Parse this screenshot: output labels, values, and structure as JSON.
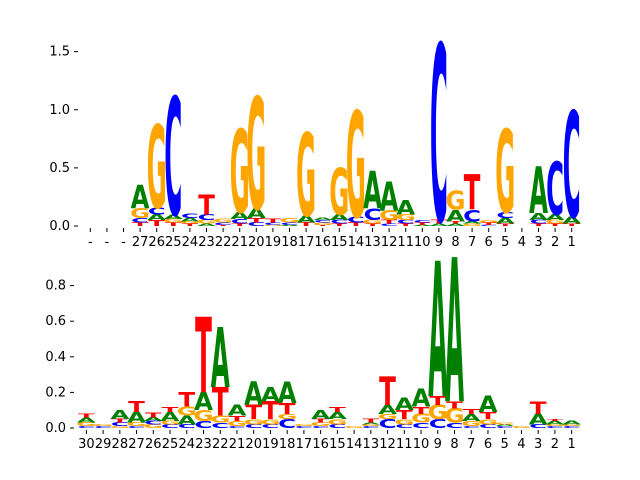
{
  "colors": {
    "A": "#008000",
    "C": "#0000ff",
    "G": "#ffa500",
    "T": "#ff0000"
  },
  "chart_data": [
    {
      "type": "sequence-logo",
      "title": "",
      "xlabel": "",
      "ylabel": "",
      "ylim": [
        0,
        1.6
      ],
      "yticks": [
        "0.0",
        "0.5",
        "1.0",
        "1.5"
      ],
      "ytick_values": [
        0,
        0.5,
        1.0,
        1.5
      ],
      "grid": false,
      "xticks": [
        "-",
        "-",
        "-",
        "27",
        "26",
        "25",
        "24",
        "23",
        "22",
        "21",
        "20",
        "19",
        "18",
        "17",
        "16",
        "15",
        "14",
        "13",
        "12",
        "11",
        "10",
        "9",
        "8",
        "7",
        "6",
        "5",
        "4",
        "3",
        "2",
        "1"
      ],
      "positions": [
        [],
        [],
        [],
        [
          [
            "T",
            0.03
          ],
          [
            "C",
            0.04
          ],
          [
            "G",
            0.08
          ],
          [
            "A",
            0.2
          ]
        ],
        [
          [
            "T",
            0.05
          ],
          [
            "A",
            0.05
          ],
          [
            "C",
            0.06
          ],
          [
            "G",
            0.7
          ]
        ],
        [
          [
            "T",
            0.03
          ],
          [
            "G",
            0.03
          ],
          [
            "A",
            0.04
          ],
          [
            "C",
            1.0
          ]
        ],
        [
          [
            "T",
            0.02
          ],
          [
            "G",
            0.02
          ],
          [
            "A",
            0.03
          ],
          [
            "C",
            0.04
          ]
        ],
        [
          [
            "A",
            0.02
          ],
          [
            "G",
            0.03
          ],
          [
            "C",
            0.05
          ],
          [
            "T",
            0.17
          ]
        ],
        [
          [
            "T",
            0.01
          ],
          [
            "C",
            0.02
          ],
          [
            "G",
            0.03
          ]
        ],
        [
          [
            "T",
            0.02
          ],
          [
            "C",
            0.04
          ],
          [
            "A",
            0.06
          ],
          [
            "G",
            0.7
          ]
        ],
        [
          [
            "C",
            0.03
          ],
          [
            "T",
            0.04
          ],
          [
            "A",
            0.08
          ],
          [
            "G",
            0.95
          ]
        ],
        [
          [
            "G",
            0.01
          ],
          [
            "C",
            0.02
          ],
          [
            "T",
            0.03
          ]
        ],
        [
          [
            "A",
            0.01
          ],
          [
            "C",
            0.02
          ],
          [
            "G",
            0.04
          ]
        ],
        [
          [
            "T",
            0.03
          ],
          [
            "A",
            0.06
          ],
          [
            "G",
            0.7
          ]
        ],
        [
          [
            "T",
            0.01
          ],
          [
            "G",
            0.02
          ],
          [
            "C",
            0.02
          ],
          [
            "A",
            0.02
          ]
        ],
        [
          [
            "T",
            0.02
          ],
          [
            "C",
            0.03
          ],
          [
            "A",
            0.05
          ],
          [
            "G",
            0.4
          ]
        ],
        [
          [
            "T",
            0.03
          ],
          [
            "C",
            0.05
          ],
          [
            "G",
            0.9
          ]
        ],
        [
          [
            "T",
            0.02
          ],
          [
            "G",
            0.03
          ],
          [
            "C",
            0.1
          ],
          [
            "A",
            0.32
          ]
        ],
        [
          [
            "C",
            0.02
          ],
          [
            "T",
            0.03
          ],
          [
            "G",
            0.08
          ],
          [
            "A",
            0.25
          ]
        ],
        [
          [
            "T",
            0.02
          ],
          [
            "C",
            0.03
          ],
          [
            "G",
            0.05
          ],
          [
            "A",
            0.12
          ]
        ],
        [
          [
            "A",
            0.01
          ],
          [
            "T",
            0.02
          ],
          [
            "C",
            0.02
          ]
        ],
        [
          [
            "A",
            0.02
          ],
          [
            "T",
            0.03
          ],
          [
            "C",
            1.5
          ]
        ],
        [
          [
            "A",
            0.02
          ],
          [
            "T",
            0.02
          ],
          [
            "A",
            0.1
          ],
          [
            "G",
            0.16
          ]
        ],
        [
          [
            "G",
            0.02
          ],
          [
            "A",
            0.02
          ],
          [
            "C",
            0.1
          ],
          [
            "T",
            0.3
          ]
        ],
        [
          [
            "C",
            0.01
          ],
          [
            "T",
            0.02
          ],
          [
            "G",
            0.02
          ]
        ],
        [
          [
            "T",
            0.02
          ],
          [
            "A",
            0.05
          ],
          [
            "C",
            0.05
          ],
          [
            "G",
            0.7
          ]
        ],
        [],
        [
          [
            "T",
            0.02
          ],
          [
            "C",
            0.03
          ],
          [
            "A",
            0.06
          ],
          [
            "A",
            0.4
          ]
        ],
        [
          [
            "T",
            0.02
          ],
          [
            "G",
            0.03
          ],
          [
            "A",
            0.05
          ],
          [
            "C",
            0.45
          ]
        ],
        [
          [
            "T",
            0.02
          ],
          [
            "A",
            0.06
          ],
          [
            "C",
            0.9
          ]
        ]
      ]
    },
    {
      "type": "sequence-logo",
      "title": "",
      "xlabel": "",
      "ylabel": "",
      "ylim": [
        0,
        1.0
      ],
      "yticks": [
        "0.0",
        "0.2",
        "0.4",
        "0.6",
        "0.8"
      ],
      "ytick_values": [
        0,
        0.2,
        0.4,
        0.6,
        0.8
      ],
      "grid": false,
      "xticks": [
        "30",
        "29",
        "28",
        "27",
        "26",
        "25",
        "24",
        "23",
        "22",
        "21",
        "20",
        "19",
        "18",
        "17",
        "16",
        "15",
        "14",
        "13",
        "12",
        "11",
        "10",
        "9",
        "8",
        "7",
        "6",
        "5",
        "4",
        "3",
        "2",
        "1"
      ],
      "positions": [
        [
          [
            "C",
            0.01
          ],
          [
            "G",
            0.02
          ],
          [
            "A",
            0.03
          ],
          [
            "T",
            0.02
          ]
        ],
        [
          [
            "C",
            0.01
          ],
          [
            "G",
            0.01
          ]
        ],
        [
          [
            "G",
            0.01
          ],
          [
            "C",
            0.02
          ],
          [
            "T",
            0.02
          ],
          [
            "A",
            0.05
          ]
        ],
        [
          [
            "C",
            0.01
          ],
          [
            "G",
            0.02
          ],
          [
            "A",
            0.06
          ],
          [
            "T",
            0.06
          ]
        ],
        [
          [
            "G",
            0.02
          ],
          [
            "C",
            0.02
          ],
          [
            "A",
            0.02
          ],
          [
            "T",
            0.03
          ]
        ],
        [
          [
            "C",
            0.02
          ],
          [
            "G",
            0.02
          ],
          [
            "A",
            0.05
          ],
          [
            "T",
            0.03
          ]
        ],
        [
          [
            "C",
            0.02
          ],
          [
            "A",
            0.05
          ],
          [
            "G",
            0.05
          ],
          [
            "T",
            0.08
          ]
        ],
        [
          [
            "C",
            0.04
          ],
          [
            "G",
            0.06
          ],
          [
            "A",
            0.1
          ],
          [
            "T",
            0.42
          ]
        ],
        [
          [
            "C",
            0.03
          ],
          [
            "G",
            0.04
          ],
          [
            "T",
            0.16
          ],
          [
            "A",
            0.33
          ]
        ],
        [
          [
            "C",
            0.01
          ],
          [
            "G",
            0.03
          ],
          [
            "T",
            0.03
          ],
          [
            "A",
            0.06
          ]
        ],
        [
          [
            "C",
            0.02
          ],
          [
            "G",
            0.03
          ],
          [
            "T",
            0.08
          ],
          [
            "A",
            0.13
          ]
        ],
        [
          [
            "C",
            0.02
          ],
          [
            "G",
            0.03
          ],
          [
            "T",
            0.1
          ],
          [
            "A",
            0.08
          ]
        ],
        [
          [
            "C",
            0.05
          ],
          [
            "G",
            0.03
          ],
          [
            "T",
            0.06
          ],
          [
            "A",
            0.12
          ]
        ],
        [
          [
            "C",
            0.01
          ],
          [
            "G",
            0.01
          ]
        ],
        [
          [
            "C",
            0.01
          ],
          [
            "G",
            0.02
          ],
          [
            "T",
            0.02
          ],
          [
            "A",
            0.05
          ]
        ],
        [
          [
            "C",
            0.02
          ],
          [
            "G",
            0.03
          ],
          [
            "A",
            0.04
          ],
          [
            "T",
            0.03
          ]
        ],
        [
          [
            "G",
            0.01
          ]
        ],
        [
          [
            "C",
            0.01
          ],
          [
            "G",
            0.01
          ],
          [
            "A",
            0.01
          ],
          [
            "T",
            0.02
          ]
        ],
        [
          [
            "C",
            0.05
          ],
          [
            "G",
            0.03
          ],
          [
            "A",
            0.05
          ],
          [
            "T",
            0.16
          ]
        ],
        [
          [
            "C",
            0.02
          ],
          [
            "G",
            0.03
          ],
          [
            "T",
            0.05
          ],
          [
            "A",
            0.07
          ]
        ],
        [
          [
            "C",
            0.03
          ],
          [
            "G",
            0.05
          ],
          [
            "T",
            0.04
          ],
          [
            "A",
            0.1
          ]
        ],
        [
          [
            "C",
            0.05
          ],
          [
            "G",
            0.08
          ],
          [
            "T",
            0.05
          ],
          [
            "A",
            0.75
          ]
        ],
        [
          [
            "C",
            0.03
          ],
          [
            "G",
            0.08
          ],
          [
            "T",
            0.04
          ],
          [
            "A",
            0.8
          ]
        ],
        [
          [
            "C",
            0.01
          ],
          [
            "G",
            0.03
          ],
          [
            "A",
            0.04
          ],
          [
            "T",
            0.03
          ]
        ],
        [
          [
            "C",
            0.02
          ],
          [
            "G",
            0.03
          ],
          [
            "T",
            0.04
          ],
          [
            "A",
            0.09
          ]
        ],
        [
          [
            "C",
            0.01
          ],
          [
            "A",
            0.01
          ],
          [
            "G",
            0.01
          ]
        ],
        [
          [
            "G",
            0.01
          ]
        ],
        [
          [
            "C",
            0.02
          ],
          [
            "A",
            0.06
          ],
          [
            "T",
            0.07
          ]
        ],
        [
          [
            "C",
            0.01
          ],
          [
            "G",
            0.01
          ],
          [
            "A",
            0.02
          ],
          [
            "T",
            0.01
          ]
        ],
        [
          [
            "C",
            0.01
          ],
          [
            "G",
            0.01
          ],
          [
            "A",
            0.02
          ]
        ]
      ]
    }
  ]
}
